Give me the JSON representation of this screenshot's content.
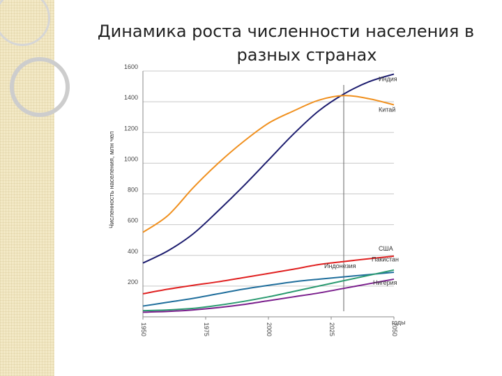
{
  "title_line1": "Динамика роста численности населения в",
  "title_line2": "разных странах",
  "chart_data": {
    "type": "line",
    "ylabel": "Численность населения, млн чел",
    "xlabel": "годы",
    "xlim": [
      1950,
      2050
    ],
    "ylim": [
      0,
      1600
    ],
    "x_ticks": [
      1950,
      1975,
      2000,
      2025,
      2050
    ],
    "y_ticks": [
      200,
      400,
      600,
      800,
      1000,
      1200,
      1400,
      1600
    ],
    "grid": true,
    "reference_x": 2030,
    "x": [
      1950,
      1960,
      1970,
      1980,
      1990,
      2000,
      2010,
      2020,
      2030,
      2040,
      2050
    ],
    "series": [
      {
        "name": "Индия",
        "color": "#1c1c6e",
        "values": [
          350,
          430,
          540,
          690,
          850,
          1020,
          1190,
          1340,
          1450,
          1530,
          1580
        ]
      },
      {
        "name": "Китай",
        "color": "#f0901e",
        "values": [
          550,
          660,
          840,
          1000,
          1140,
          1260,
          1340,
          1410,
          1440,
          1420,
          1380
        ]
      },
      {
        "name": "США",
        "color": "#e02020",
        "values": [
          150,
          180,
          205,
          228,
          255,
          282,
          310,
          340,
          360,
          378,
          395
        ]
      },
      {
        "name": "Индонезия",
        "color": "#1f6e9c",
        "values": [
          70,
          95,
          120,
          150,
          180,
          205,
          228,
          245,
          260,
          275,
          290
        ]
      },
      {
        "name": "Пакистан",
        "color": "#2a9a70",
        "values": [
          40,
          45,
          55,
          75,
          100,
          130,
          165,
          200,
          235,
          270,
          305
        ]
      },
      {
        "name": "Нигерия",
        "color": "#7a1e8c",
        "values": [
          30,
          35,
          45,
          60,
          80,
          105,
          130,
          155,
          185,
          215,
          245
        ]
      }
    ]
  },
  "colors": {
    "grid": "#c8c8c8",
    "axis": "#888888",
    "sidebar": "#f3e9c6"
  }
}
